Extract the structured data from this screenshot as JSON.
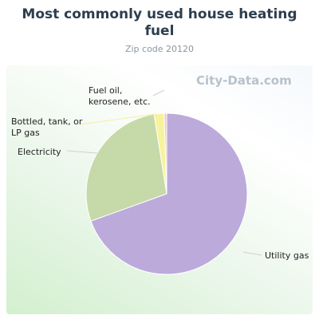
{
  "chart_data": {
    "type": "pie",
    "title": "Most commonly used house heating fuel",
    "subtitle": "Zip code 20120",
    "watermark": "City-Data.com",
    "categories": [
      "Utility gas",
      "Electricity",
      "Bottled, tank, or LP gas",
      "Fuel oil, kerosene, etc."
    ],
    "values": [
      69.5,
      28,
      2,
      0.5
    ],
    "colors": [
      "#bcaadb",
      "#c6d9a9",
      "#f7f39c",
      "#f2c4c4"
    ]
  }
}
